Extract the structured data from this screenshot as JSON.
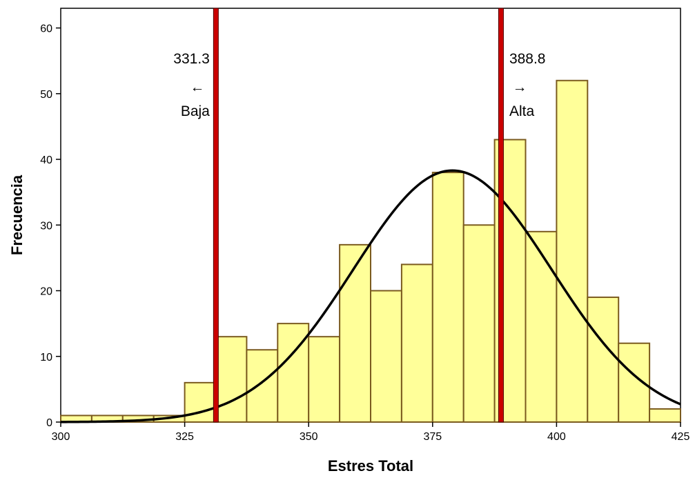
{
  "colors": {
    "bar_fill": "#ffff99",
    "bar_stroke": "#7a5a1e",
    "curve": "#000000",
    "cutoff_line": "#cc0000",
    "cutoff_edge": "#4a0000"
  },
  "chart_data": {
    "type": "bar",
    "subtype": "histogram with normal curve",
    "title": "",
    "xlabel": "Estres Total",
    "ylabel": "Frecuencia",
    "xlim": [
      300,
      425
    ],
    "ylim": [
      0,
      63
    ],
    "x_ticks": [
      300,
      325,
      350,
      375,
      400,
      425
    ],
    "y_ticks": [
      0,
      10,
      20,
      30,
      40,
      50,
      60
    ],
    "grid": false,
    "legend": "none",
    "bins": [
      {
        "start": 300.0,
        "end": 306.25,
        "count": 1
      },
      {
        "start": 306.25,
        "end": 312.5,
        "count": 1
      },
      {
        "start": 312.5,
        "end": 318.75,
        "count": 1
      },
      {
        "start": 318.75,
        "end": 325.0,
        "count": 1
      },
      {
        "start": 325.0,
        "end": 331.25,
        "count": 6
      },
      {
        "start": 331.25,
        "end": 337.5,
        "count": 13
      },
      {
        "start": 337.5,
        "end": 343.75,
        "count": 11
      },
      {
        "start": 343.75,
        "end": 350.0,
        "count": 15
      },
      {
        "start": 350.0,
        "end": 356.25,
        "count": 13
      },
      {
        "start": 356.25,
        "end": 362.5,
        "count": 27
      },
      {
        "start": 362.5,
        "end": 368.75,
        "count": 20
      },
      {
        "start": 368.75,
        "end": 375.0,
        "count": 24
      },
      {
        "start": 375.0,
        "end": 381.25,
        "count": 38
      },
      {
        "start": 381.25,
        "end": 387.5,
        "count": 30
      },
      {
        "start": 387.5,
        "end": 393.75,
        "count": 43
      },
      {
        "start": 393.75,
        "end": 400.0,
        "count": 29
      },
      {
        "start": 400.0,
        "end": 406.25,
        "count": 52
      },
      {
        "start": 406.25,
        "end": 412.5,
        "count": 19
      },
      {
        "start": 412.5,
        "end": 418.75,
        "count": 12
      },
      {
        "start": 418.75,
        "end": 425.0,
        "count": 2
      }
    ],
    "normal_curve": {
      "mean": 379,
      "sd": 20,
      "peak": 38.3
    },
    "cutoffs": [
      {
        "x": 331.3,
        "value_label": "331.3",
        "arrow": "←",
        "category": "Baja",
        "side": "left"
      },
      {
        "x": 388.8,
        "value_label": "388.8",
        "arrow": "→",
        "category": "Alta",
        "side": "right"
      }
    ]
  }
}
